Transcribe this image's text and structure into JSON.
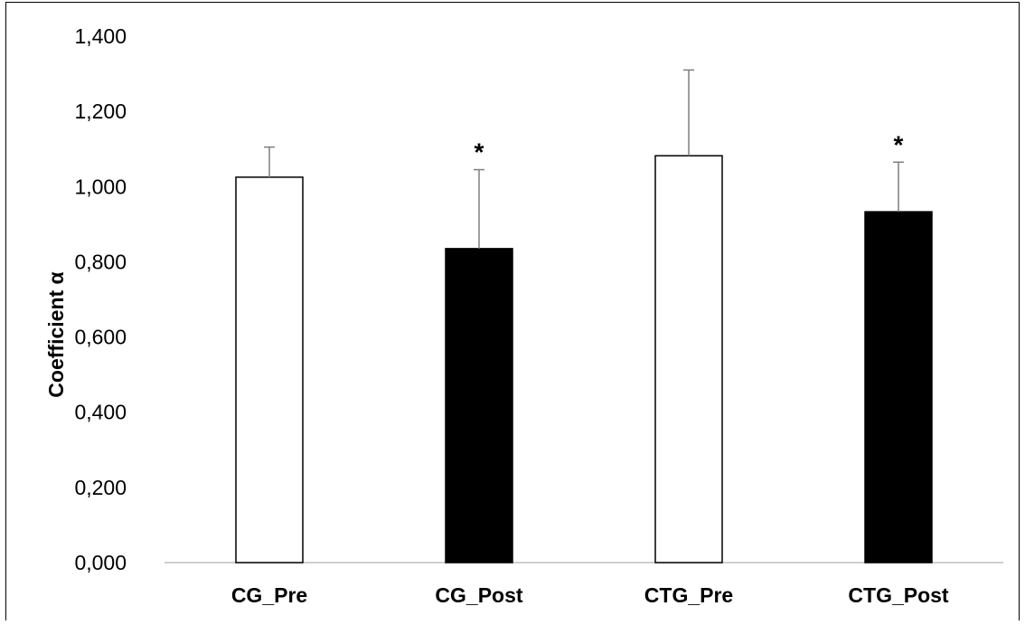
{
  "chart_data": {
    "type": "bar",
    "title": "",
    "xlabel": "",
    "ylabel": "Coefficient α",
    "categories": [
      "CG_Pre",
      "CG_Post",
      "CTG_Pre",
      "CTG_Post"
    ],
    "values": [
      1.025,
      0.835,
      1.082,
      0.933
    ],
    "error_plus": [
      0.08,
      0.21,
      0.228,
      0.132
    ],
    "annotations": [
      "",
      "*",
      "",
      "*"
    ],
    "bar_colors": [
      "#ffffff",
      "#000000",
      "#ffffff",
      "#000000"
    ],
    "ylim": [
      0,
      1.4
    ],
    "yticks": [
      0,
      0.2,
      0.4,
      0.6,
      0.8,
      1.0,
      1.2,
      1.4
    ],
    "ytick_labels": [
      "0,000",
      "0,200",
      "0,400",
      "0,600",
      "0,800",
      "1,000",
      "1,200",
      "1,400"
    ],
    "grid": false,
    "legend": "none"
  }
}
